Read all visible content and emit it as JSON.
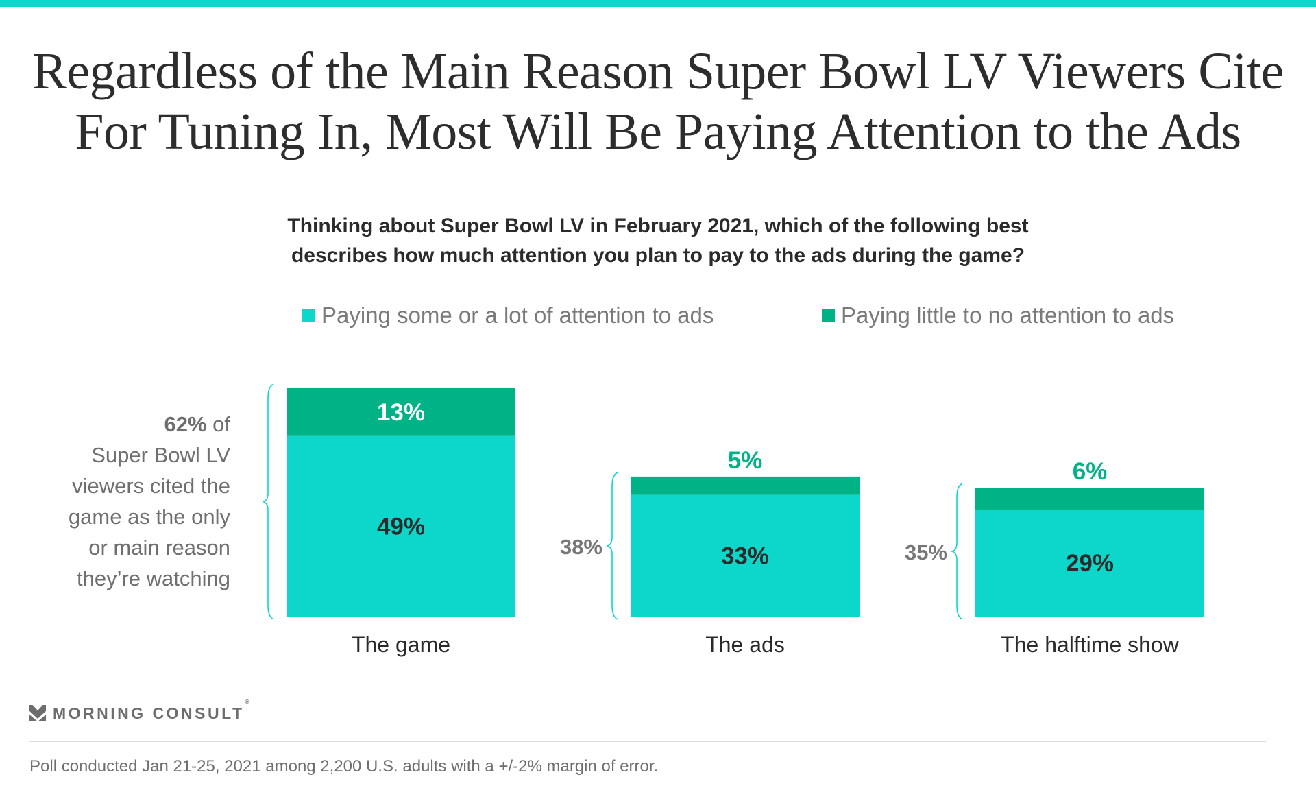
{
  "title": {
    "line1": "Regardless of the Main Reason Super Bowl LV Viewers Cite",
    "line2": "For Tuning In, Most Will Be Paying Attention to the Ads"
  },
  "subtitle": {
    "line1": "Thinking about Super Bowl LV in February 2021, which of the following best",
    "line2": "describes how much attention you plan to pay to the ads during the game?"
  },
  "colors": {
    "accent_bar": "#0DD6CB",
    "some_or_lot": "#0DD6CB",
    "little_or_none": "#00B386",
    "bracket": "#0DD6CB"
  },
  "annotation": {
    "bold": "62%",
    "rest_line1": " of",
    "lines": [
      "Super Bowl LV",
      "viewers cited the",
      "game as the only",
      "or main reason",
      "they’re watching"
    ]
  },
  "chart_data": {
    "type": "bar",
    "stacked": true,
    "title": "Thinking about Super Bowl LV in February 2021, which of the following best describes how much attention you plan to pay to the ads during the game?",
    "xlabel": "",
    "ylabel": "",
    "unit": "%",
    "categories": [
      "The game",
      "The ads",
      "The halftime show"
    ],
    "series": [
      {
        "name": "Paying some or a lot of attention to ads",
        "values": [
          49,
          33,
          29
        ],
        "color": "#0DD6CB"
      },
      {
        "name": "Paying little to no attention to ads",
        "values": [
          13,
          5,
          6
        ],
        "color": "#00B386"
      }
    ],
    "totals": [
      62,
      38,
      35
    ],
    "total_labels": [
      "62%",
      "38%",
      "35%"
    ],
    "segment_labels": [
      [
        "49%",
        "13%"
      ],
      [
        "33%",
        "5%"
      ],
      [
        "29%",
        "6%"
      ]
    ],
    "legend": [
      "Paying some or a lot of attention to ads",
      "Paying little to no attention to ads"
    ],
    "legend_position": "top",
    "grid": false,
    "ylim": [
      0,
      62
    ]
  },
  "branding": {
    "logo_text": "MORNING CONSULT",
    "registered_mark": "®",
    "logo_icon": "morning-consult-chevron-icon"
  },
  "footnote": "Poll conducted Jan 21-25, 2021 among 2,200 U.S. adults with a +/-2% margin of error."
}
